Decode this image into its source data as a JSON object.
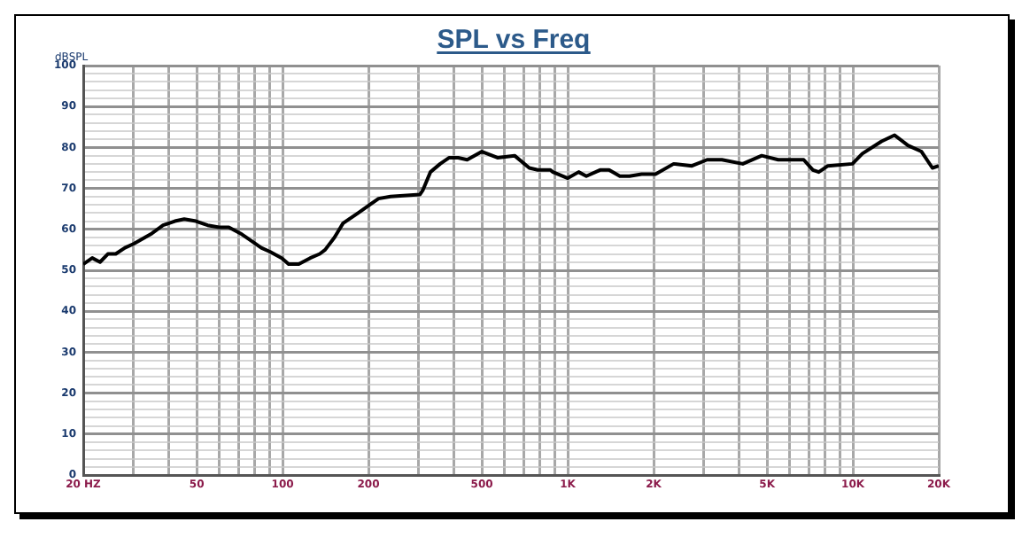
{
  "chart_data": {
    "type": "line",
    "title": "SPL vs Freq",
    "ylabel": "dBSPL",
    "x": [
      20,
      21.5,
      22.9,
      24.4,
      26,
      28,
      30.1,
      34.8,
      38.1,
      41.9,
      45.2,
      49.7,
      54.6,
      59.9,
      64.8,
      71.2,
      76.6,
      84.2,
      90.6,
      99.3,
      105,
      114,
      125,
      135,
      141,
      152,
      163,
      184,
      202,
      217,
      239,
      303,
      310,
      330,
      357,
      384,
      413,
      444,
      500,
      567,
      651,
      733,
      785,
      869,
      887,
      1000,
      1092,
      1162,
      1298,
      1396,
      1523,
      1646,
      1816,
      2032,
      2352,
      2725,
      3082,
      3472,
      4110,
      4790,
      5470,
      6720,
      7240,
      7590,
      8170,
      9960,
      10790,
      12600,
      14000,
      15600,
      17400,
      19000,
      20000
    ],
    "series": [
      {
        "color": "#000000",
        "values": [
          51.5,
          53,
          52,
          54,
          54,
          55.5,
          56.5,
          59,
          61,
          62,
          62.5,
          62,
          61,
          60.5,
          60.5,
          59,
          57.5,
          55.5,
          54.5,
          53,
          51.5,
          51.5,
          53,
          54,
          55,
          58,
          61.5,
          64,
          66,
          67.5,
          68,
          68.5,
          69.5,
          74,
          76,
          77.5,
          77.5,
          77,
          79,
          77.5,
          78,
          75,
          74.5,
          74.5,
          74,
          72.5,
          74,
          73,
          74.5,
          74.5,
          73,
          73,
          73.5,
          73.5,
          76,
          75.5,
          77,
          77,
          76,
          78,
          77,
          77,
          74.5,
          74,
          75.5,
          76,
          78.5,
          81.5,
          83,
          80.5,
          79,
          75,
          75.5
        ]
      }
    ],
    "log": "x",
    "xlim": [
      20,
      20000
    ],
    "ylim": [
      0,
      100
    ],
    "xticks": [
      {
        "value": 20,
        "label": "20 HZ"
      },
      {
        "value": 30,
        "label": null
      },
      {
        "value": 40,
        "label": null
      },
      50,
      {
        "value": 60,
        "label": null
      },
      {
        "value": 70,
        "label": null
      },
      {
        "value": 80,
        "label": null
      },
      {
        "value": 90,
        "label": null
      },
      100,
      200,
      {
        "value": 300,
        "label": null
      },
      {
        "value": 400,
        "label": null
      },
      500,
      {
        "value": 600,
        "label": null
      },
      {
        "value": 700,
        "label": null
      },
      {
        "value": 800,
        "label": null
      },
      {
        "value": 900,
        "label": null
      },
      {
        "value": 1000,
        "label": "1K"
      },
      {
        "value": 2000,
        "label": "2K"
      },
      {
        "value": 3000,
        "label": null
      },
      {
        "value": 4000,
        "label": null
      },
      {
        "value": 5000,
        "label": "5K"
      },
      {
        "value": 6000,
        "label": null
      },
      {
        "value": 7000,
        "label": null
      },
      {
        "value": 8000,
        "label": null
      },
      {
        "value": 9000,
        "label": null
      },
      {
        "value": 10000,
        "label": "10K"
      },
      {
        "value": 20000,
        "label": "20K"
      }
    ],
    "yticks": [
      0,
      {
        "value": 2,
        "label": null
      },
      {
        "value": 4,
        "label": null
      },
      {
        "value": 6,
        "label": null
      },
      {
        "value": 8,
        "label": null
      },
      10,
      {
        "value": 12,
        "label": null
      },
      {
        "value": 14,
        "label": null
      },
      {
        "value": 16,
        "label": null
      },
      {
        "value": 18,
        "label": null
      },
      20,
      {
        "value": 22,
        "label": null
      },
      {
        "value": 24,
        "label": null
      },
      {
        "value": 26,
        "label": null
      },
      {
        "value": 28,
        "label": null
      },
      30,
      {
        "value": 32,
        "label": null
      },
      {
        "value": 34,
        "label": null
      },
      {
        "value": 36,
        "label": null
      },
      {
        "value": 38,
        "label": null
      },
      40,
      {
        "value": 42,
        "label": null
      },
      {
        "value": 44,
        "label": null
      },
      {
        "value": 46,
        "label": null
      },
      {
        "value": 48,
        "label": null
      },
      50,
      {
        "value": 52,
        "label": null
      },
      {
        "value": 54,
        "label": null
      },
      {
        "value": 56,
        "label": null
      },
      {
        "value": 58,
        "label": null
      },
      60,
      {
        "value": 62,
        "label": null
      },
      {
        "value": 64,
        "label": null
      },
      {
        "value": 66,
        "label": null
      },
      {
        "value": 68,
        "label": null
      },
      70,
      {
        "value": 72,
        "label": null
      },
      {
        "value": 74,
        "label": null
      },
      {
        "value": 76,
        "label": null
      },
      {
        "value": 78,
        "label": null
      },
      80,
      {
        "value": 82,
        "label": null
      },
      {
        "value": 84,
        "label": null
      },
      {
        "value": 86,
        "label": null
      },
      {
        "value": 88,
        "label": null
      },
      90,
      {
        "value": 92,
        "label": null
      },
      {
        "value": 94,
        "label": null
      },
      {
        "value": 96,
        "label": null
      },
      {
        "value": 98,
        "label": null
      },
      100
    ],
    "grid": true,
    "legend": false,
    "marker": "none",
    "line_style": "solid"
  }
}
